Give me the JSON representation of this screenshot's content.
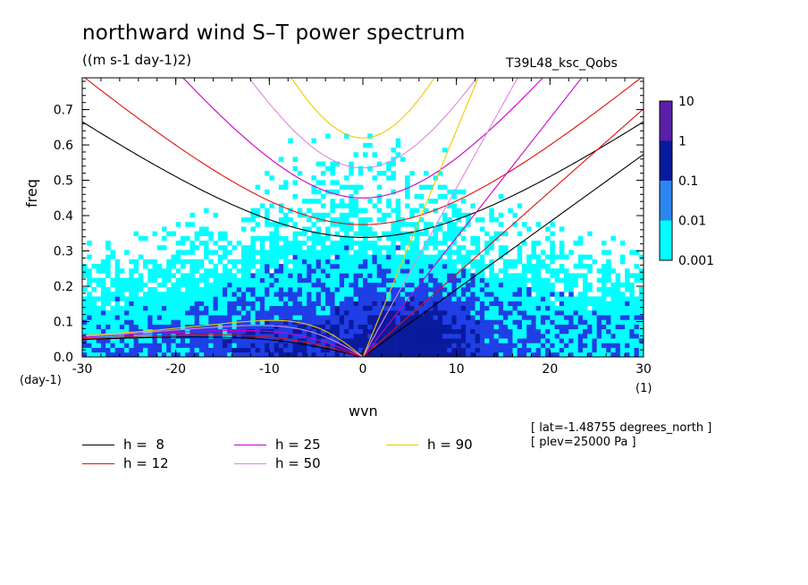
{
  "title": "northward wind S–T power spectrum",
  "units": "((m s-1 day-1)2)",
  "run_name": "T39L48_ksc_Qobs",
  "meta": [
    "[ lat=-1.48755 degrees_north ]",
    "[ plev=25000 Pa ]"
  ],
  "colorbar": {
    "labels": [
      "10",
      "1",
      "0.1",
      "0.01",
      "0.001"
    ],
    "colors": [
      "#5a1fa8",
      "#0a1a9c",
      "#1e3ee6",
      "#2d86f0",
      "#00ffff"
    ]
  },
  "chart_data": {
    "type": "heatmap",
    "title": "northward wind S–T power spectrum",
    "subtitle": "((m s-1 day-1)2)",
    "xlabel": "wvn",
    "xunit": "(1)",
    "ylabel": "freq",
    "yunit": "(day-1)",
    "xlim": [
      -30,
      30
    ],
    "ylim": [
      0,
      0.79
    ],
    "xticks": [
      "-30",
      "-20",
      "-10",
      "0",
      "10",
      "20",
      "30"
    ],
    "xtick_values": [
      -30,
      -20,
      -10,
      0,
      10,
      20,
      30
    ],
    "yticks": [
      "0.0",
      "0.1",
      "0.2",
      "0.3",
      "0.4",
      "0.5",
      "0.6",
      "0.7"
    ],
    "ytick_values": [
      0,
      0.1,
      0.2,
      0.3,
      0.4,
      0.5,
      0.6,
      0.7
    ],
    "contour_levels": [
      0.001,
      0.01,
      0.1,
      1,
      10
    ],
    "dispersion_curves": [
      {
        "name": "h =  8",
        "h": 8,
        "color": "#000000"
      },
      {
        "name": "h = 12",
        "h": 12,
        "color": "#e01010"
      },
      {
        "name": "h = 25",
        "h": 25,
        "color": "#cc00cc"
      },
      {
        "name": "h = 50",
        "h": 50,
        "color": "#dd88dd"
      },
      {
        "name": "h = 90",
        "h": 90,
        "color": "#f0c800"
      }
    ]
  }
}
